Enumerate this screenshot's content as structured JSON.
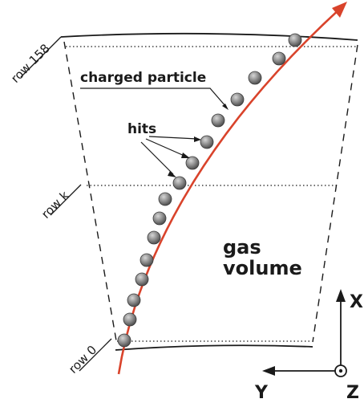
{
  "labels": {
    "charged_particle": "charged particle",
    "hits": "hits",
    "gas": "gas",
    "volume": "volume",
    "row_top": "row 158",
    "row_mid": "row k",
    "row_bottom": "row 0",
    "axis_x": "X",
    "axis_y": "Y",
    "axis_z": "Z"
  },
  "colors": {
    "track": "#d9432b",
    "hit": "#7a7a7a",
    "outline": "#1a1a1a"
  },
  "hits": {
    "count": 17
  }
}
